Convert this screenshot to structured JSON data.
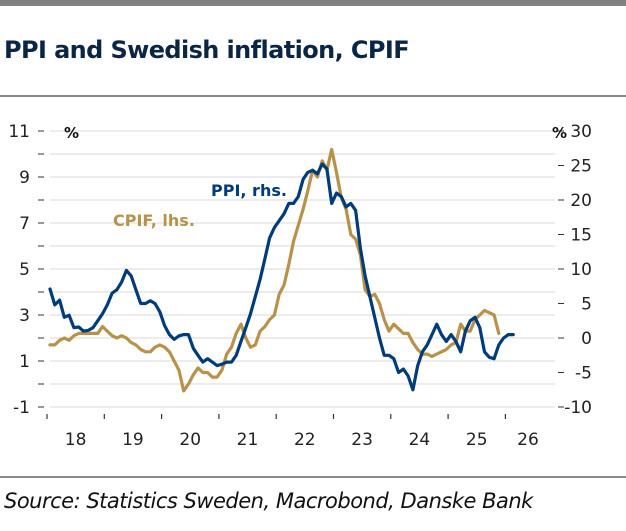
{
  "title": "PPI and Swedish inflation, CPIF",
  "source": "Source: Statistics Sweden, Macrobond, Danske Bank",
  "colors": {
    "ppi": "#003B7A",
    "cpif": "#B8924A",
    "title": "#0B2545",
    "grid": "#D9D9D9"
  },
  "chart_data": {
    "type": "line",
    "title": "PPI and Swedish inflation, CPIF",
    "xlabel": "",
    "ylabel_left": "%",
    "ylabel_right": "%",
    "x_range": [
      2018,
      2026
    ],
    "x_tick_labels": [
      "18",
      "19",
      "20",
      "21",
      "22",
      "23",
      "24",
      "25",
      "26"
    ],
    "y_left_range": [
      -1,
      11
    ],
    "y_left_ticks": [
      11,
      9,
      7,
      5,
      3,
      1,
      -1
    ],
    "y_right_range": [
      -10,
      30
    ],
    "y_right_ticks": [
      30,
      25,
      20,
      15,
      10,
      5,
      0,
      -5,
      -10
    ],
    "grid": true,
    "legend": "inline labels",
    "series": [
      {
        "name": "CPIF, lhs.",
        "axis": "left",
        "color": "#B8924A",
        "start": 2018.0,
        "step_months": 1,
        "values": [
          1.7,
          1.7,
          1.9,
          2.0,
          1.9,
          2.1,
          2.2,
          2.2,
          2.2,
          2.2,
          2.2,
          2.5,
          2.3,
          2.1,
          2.0,
          2.1,
          2.0,
          1.8,
          1.7,
          1.5,
          1.4,
          1.4,
          1.6,
          1.7,
          1.6,
          1.4,
          1.0,
          0.6,
          -0.3,
          0.0,
          0.4,
          0.7,
          0.5,
          0.5,
          0.3,
          0.3,
          0.6,
          1.3,
          1.6,
          2.2,
          2.6,
          2.0,
          1.6,
          1.7,
          2.3,
          2.5,
          2.8,
          3.0,
          3.9,
          4.3,
          5.2,
          6.2,
          6.9,
          7.6,
          8.4,
          9.3,
          9.0,
          9.7,
          9.3,
          10.2,
          9.2,
          8.1,
          7.6,
          6.5,
          6.3,
          5.6,
          4.1,
          3.8,
          3.9,
          3.5,
          2.8,
          2.3,
          2.6,
          2.4,
          2.2,
          2.2,
          1.8,
          1.5,
          1.3,
          1.3,
          1.2,
          1.3,
          1.4,
          1.5,
          1.7,
          1.8,
          2.6,
          2.3,
          2.3,
          2.8,
          3.0,
          3.2,
          3.1,
          3.0,
          2.2
        ]
      },
      {
        "name": "PPI, rhs.",
        "axis": "right",
        "color": "#003B7A",
        "start": 2018.0,
        "step_months": 1,
        "values": [
          7.1,
          4.8,
          5.5,
          3.0,
          3.3,
          1.5,
          1.6,
          1.0,
          1.1,
          1.5,
          2.5,
          3.5,
          4.8,
          6.5,
          7.0,
          8.1,
          9.8,
          9.0,
          7.0,
          5.0,
          5.0,
          5.4,
          5.0,
          3.8,
          1.8,
          0.5,
          -0.2,
          0.3,
          0.5,
          0.5,
          -1.5,
          -2.5,
          -3.5,
          -3.0,
          -3.5,
          -4.0,
          -3.8,
          -3.5,
          -3.5,
          -2.5,
          -0.5,
          1.5,
          3.5,
          6.0,
          8.5,
          11.5,
          14.5,
          16.0,
          17.0,
          18.0,
          19.5,
          19.5,
          20.5,
          23.0,
          24.0,
          24.3,
          23.8,
          25.2,
          24.5,
          19.5,
          21.0,
          20.5,
          19.0,
          19.5,
          18.5,
          13.0,
          9.0,
          6.0,
          3.0,
          0.0,
          -2.5,
          -2.5,
          -3.0,
          -5.0,
          -4.5,
          -5.5,
          -7.5,
          -4.0,
          -2.0,
          -1.0,
          0.5,
          2.0,
          0.5,
          -0.5,
          0.5,
          -0.5,
          -2.0,
          1.0,
          2.5,
          3.0,
          1.5,
          -2.0,
          -2.8,
          -3.0,
          -1.0,
          0.0,
          0.5,
          0.5
        ]
      }
    ],
    "annotations": [
      "PPI, rhs.",
      "CPIF, lhs."
    ]
  },
  "axes": {
    "left_unit": "%",
    "right_unit": "%"
  }
}
